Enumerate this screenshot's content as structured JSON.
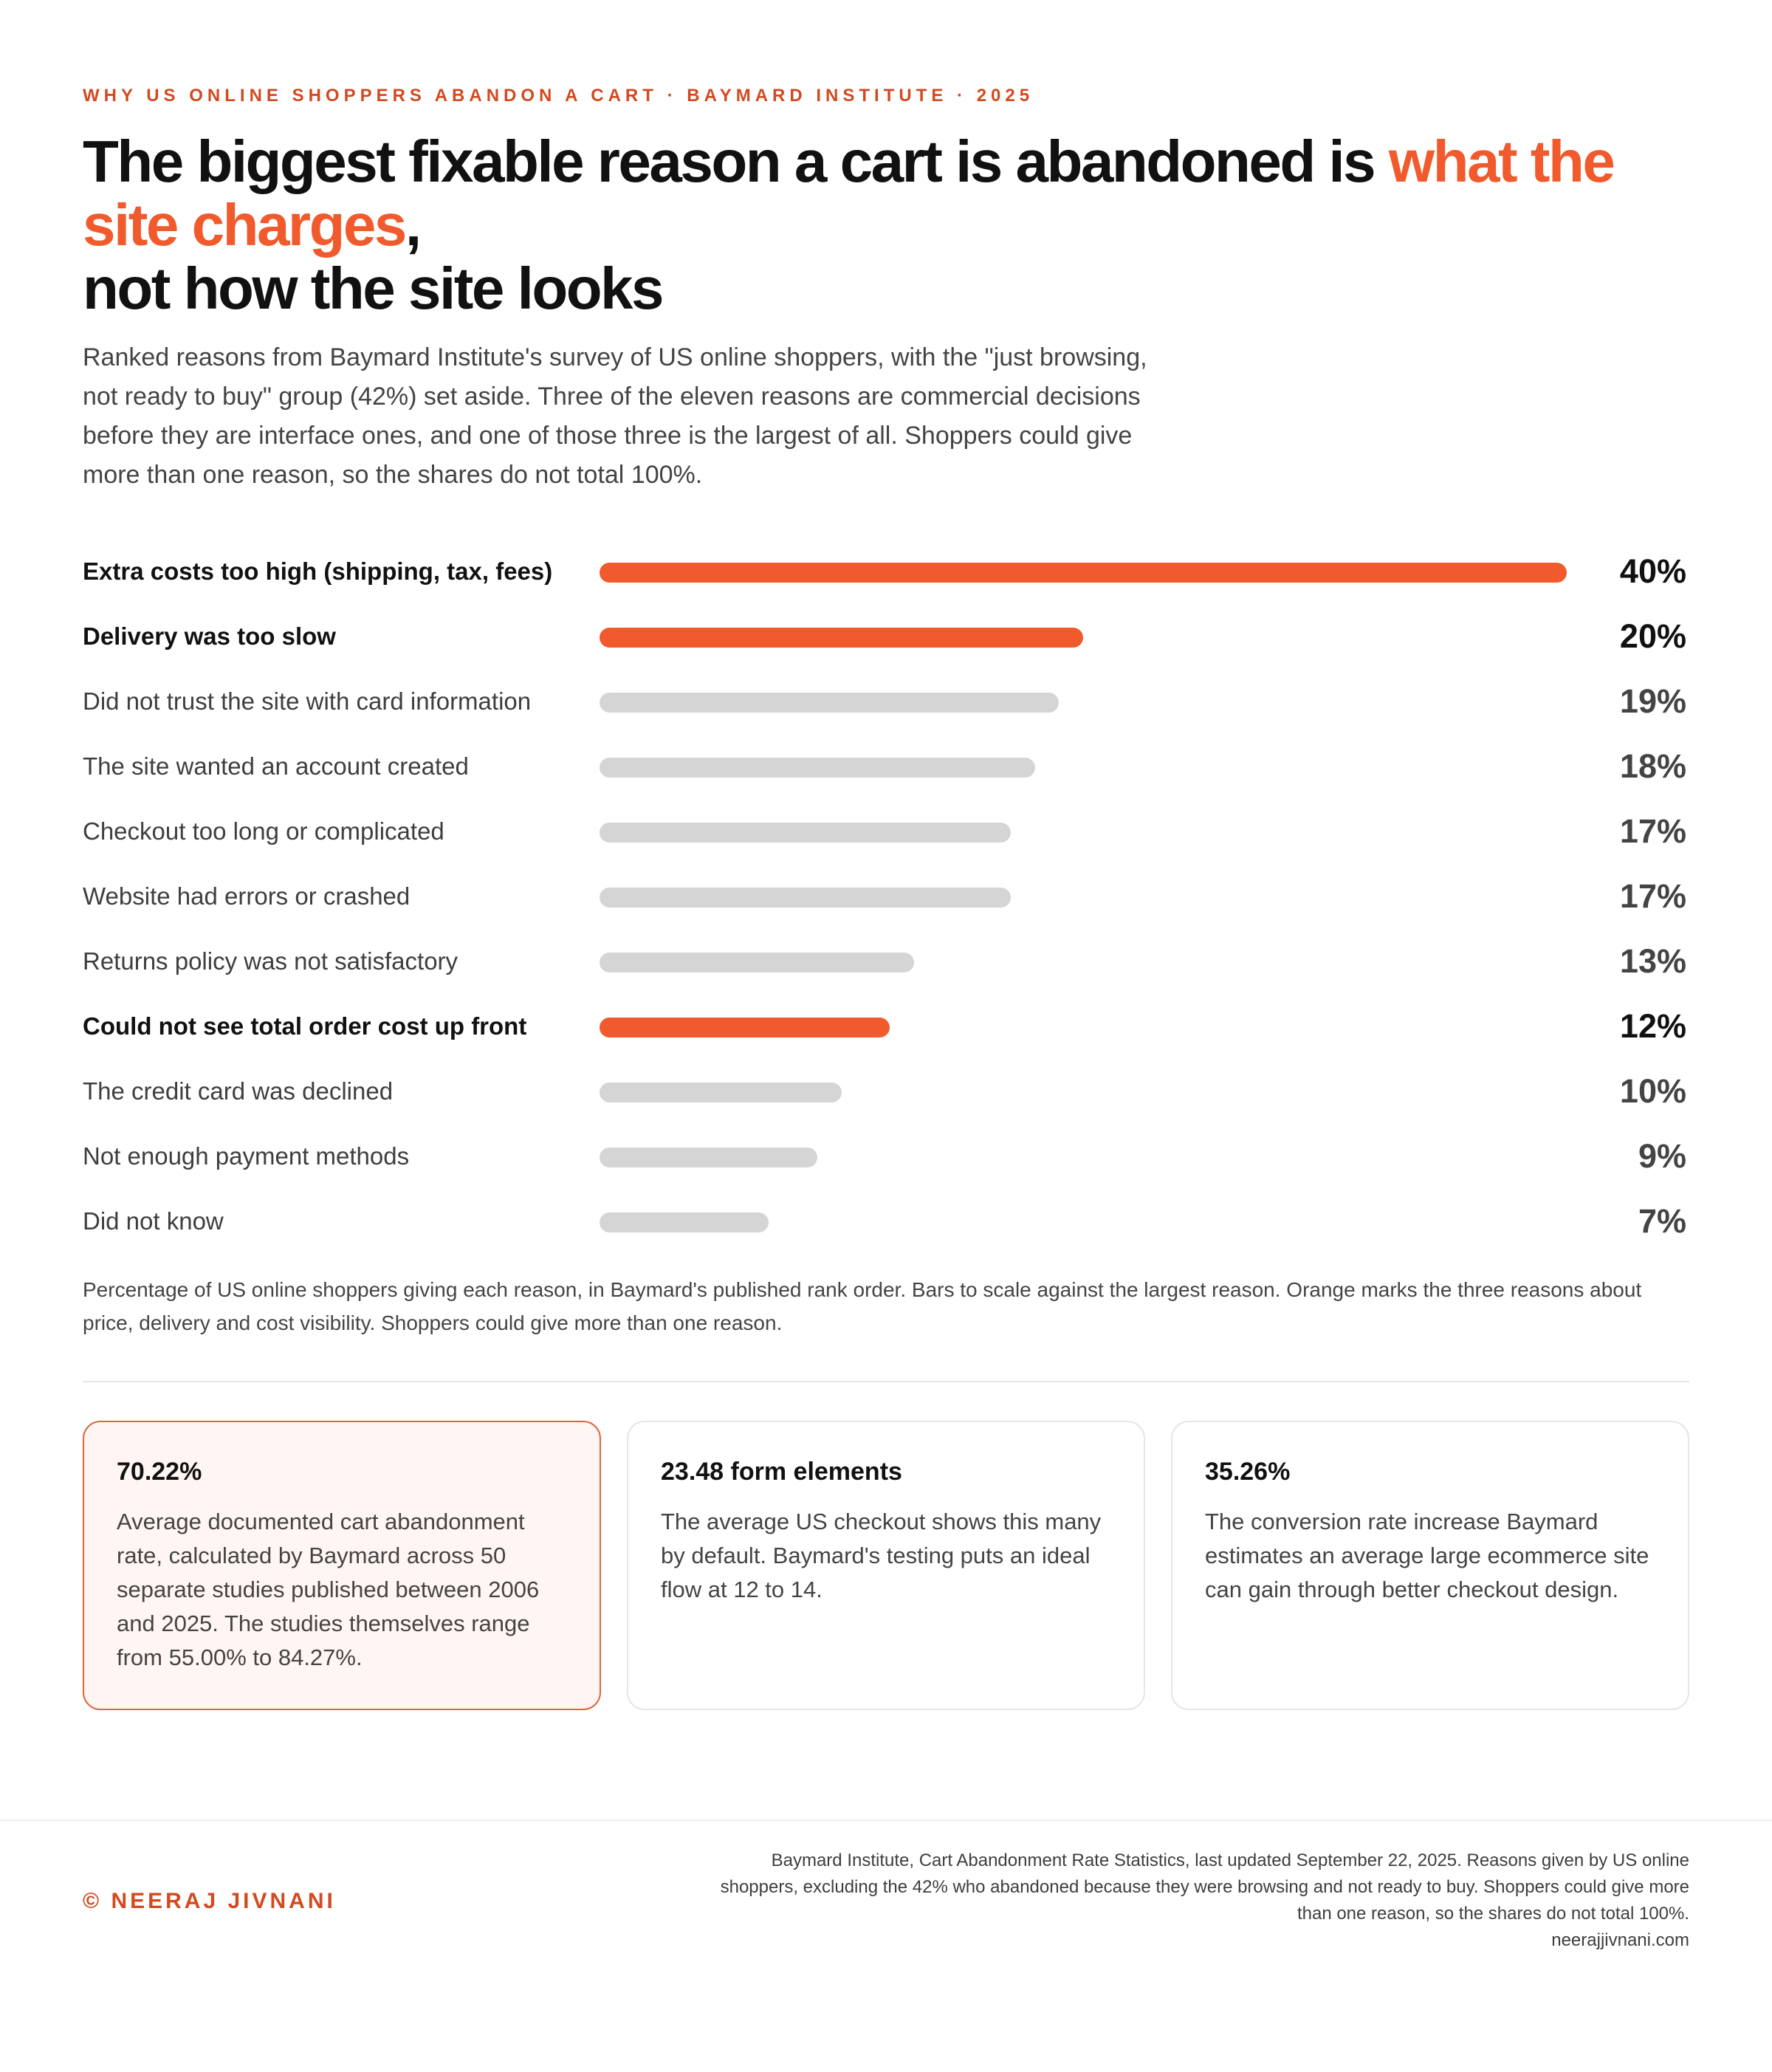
{
  "header": {
    "eyebrow": "WHY US ONLINE SHOPPERS ABANDON A CART · BAYMARD INSTITUTE · 2025",
    "headline_start": "The biggest fixable reason a cart is abandoned is ",
    "headline_accent": "what the site charges",
    "headline_comma": ",",
    "headline_end": "not how the site looks",
    "subhead": "Ranked reasons from Baymard Institute's survey of US online shoppers, with the \"just browsing, not ready to buy\" group (42%) set aside. Three of the eleven reasons are commercial decisions before they are interface ones, and one of those three is the largest of all. Shoppers could give more than one reason, so the shares do not total 100%."
  },
  "colors": {
    "accent": "#f15a2c",
    "muted_bar": "#d5d5d5",
    "eyebrow": "#d24a1f"
  },
  "chart_data": {
    "type": "bar",
    "orientation": "horizontal",
    "title": "",
    "xlabel": "",
    "ylabel": "",
    "xlim": [
      0,
      40
    ],
    "grid": false,
    "categories": [
      "Extra costs too high (shipping, tax, fees)",
      "Delivery was too slow",
      "Did not trust the site with card information",
      "The site wanted an account created",
      "Checkout too long or complicated",
      "Website had errors or crashed",
      "Returns policy was not satisfactory",
      "Could not see total order cost up front",
      "The credit card was declined",
      "Not enough payment methods",
      "Did not know"
    ],
    "values": [
      40,
      20,
      19,
      18,
      17,
      17,
      13,
      12,
      10,
      9,
      7
    ],
    "value_labels": [
      "40%",
      "20%",
      "19%",
      "18%",
      "17%",
      "17%",
      "13%",
      "12%",
      "10%",
      "9%",
      "7%"
    ],
    "highlighted": [
      true,
      true,
      false,
      false,
      false,
      false,
      false,
      true,
      false,
      false,
      false
    ]
  },
  "chart_note": "Percentage of US online shoppers giving each reason, in Baymard's published rank order. Bars to scale against the largest reason. Orange marks the three reasons about price, delivery and cost visibility. Shoppers could give more than one reason.",
  "cards": [
    {
      "title": "70.22%",
      "body": "Average documented cart abandonment rate, calculated by Baymard across 50 separate studies published between 2006 and 2025. The studies themselves range from 55.00% to 84.27%.",
      "highlighted": true
    },
    {
      "title": "23.48 form elements",
      "body": "The average US checkout shows this many by default. Baymard's testing puts an ideal flow at 12 to 14.",
      "highlighted": false
    },
    {
      "title": "35.26%",
      "body": "The conversion rate increase Baymard estimates an average large ecommerce site can gain through better checkout design.",
      "highlighted": false
    }
  ],
  "footer": {
    "credit": "© NEERAJ JIVNANI",
    "source": "Baymard Institute, Cart Abandonment Rate Statistics, last updated September 22, 2025. Reasons given by US online shoppers, excluding the 42% who abandoned because they were browsing and not ready to buy. Shoppers could give more than one reason, so the shares do not total 100%.",
    "website": "neerajjivnani.com"
  }
}
